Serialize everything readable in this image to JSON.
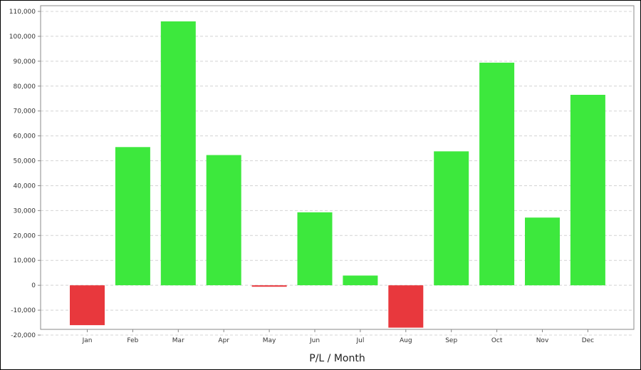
{
  "chart_data": {
    "type": "bar",
    "xlabel": "P/L / Month",
    "ylabel": "",
    "categories": [
      "Jan",
      "Feb",
      "Mar",
      "Apr",
      "May",
      "Jun",
      "Jul",
      "Aug",
      "Sep",
      "Oct",
      "Nov",
      "Dec"
    ],
    "values": [
      -16000,
      55500,
      106000,
      52300,
      -500,
      29300,
      3900,
      -17000,
      53800,
      89400,
      27200,
      76500
    ],
    "ylim": [
      -20000,
      110000
    ],
    "yticks": [
      -20000,
      -10000,
      0,
      10000,
      20000,
      30000,
      40000,
      50000,
      60000,
      70000,
      80000,
      90000,
      100000,
      110000
    ],
    "ytick_labels": [
      "-20,000",
      "-10,000",
      "0",
      "10,000",
      "20,000",
      "30,000",
      "40,000",
      "50,000",
      "60,000",
      "70,000",
      "80,000",
      "90,000",
      "100,000",
      "110,000"
    ],
    "grid": true,
    "colors": {
      "positive": "#3de83d",
      "negative": "#e8383d",
      "axis": "#888888",
      "grid": "#d4d4d4"
    }
  }
}
